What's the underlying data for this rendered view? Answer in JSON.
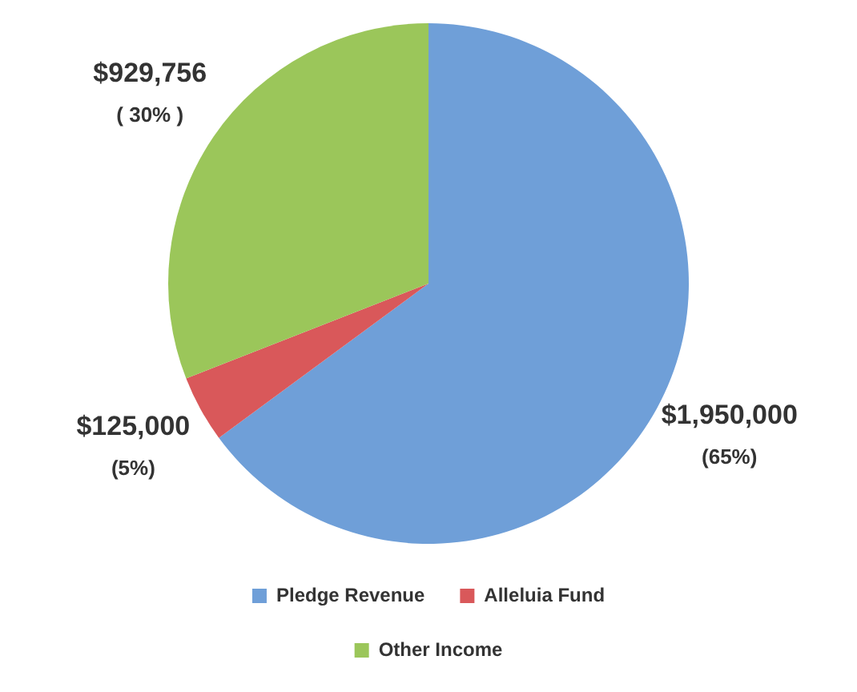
{
  "chart_data": {
    "type": "pie",
    "categories": [
      "Pledge Revenue",
      "Alleluia Fund",
      "Other Income"
    ],
    "values": [
      1950000,
      125000,
      929756
    ],
    "colors": [
      "#6f9fd8",
      "#d9585a",
      "#9bc65a"
    ],
    "value_labels": [
      "$1,950,000",
      "$125,000",
      "$929,756"
    ],
    "annotations": [
      "(65%)",
      "(5%)",
      "( 30% )"
    ],
    "legend": "bottom"
  }
}
